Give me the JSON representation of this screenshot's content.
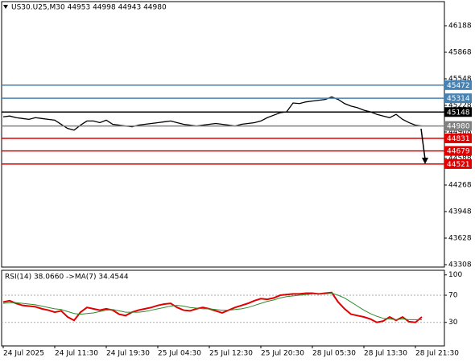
{
  "chart_data": [
    {
      "type": "line",
      "title": "US30.U25,M30  44953 44998 44943 44980",
      "color": "#000000",
      "values": [
        45090,
        45100,
        45080,
        45070,
        45060,
        45080,
        45070,
        45060,
        45050,
        45000,
        44950,
        44930,
        44990,
        45040,
        45040,
        45020,
        45050,
        45000,
        44990,
        44980,
        44970,
        44990,
        45000,
        45010,
        45020,
        45030,
        45040,
        45020,
        45000,
        44990,
        44980,
        44990,
        45000,
        45010,
        45000,
        44990,
        44980,
        45000,
        45010,
        45020,
        45040,
        45080,
        45110,
        45140,
        45150,
        45257,
        45250,
        45270,
        45280,
        45290,
        45300,
        45330,
        45300,
        45250,
        45220,
        45200,
        45170,
        45150,
        45120,
        45100,
        45080,
        45120,
        45060,
        45020,
        44990,
        44980
      ],
      "ylim": [
        43279,
        46479
      ],
      "yticks": [
        46188,
        45868,
        45548,
        45228,
        44908,
        44588,
        44268,
        43948,
        43628,
        43308
      ],
      "levels": [
        {
          "value": 45472,
          "color": "#4682b4"
        },
        {
          "value": 45314,
          "color": "#4682b4"
        },
        {
          "value": 45148,
          "color": "#000000"
        },
        {
          "value": 44980,
          "color": "#808080"
        },
        {
          "value": 44831,
          "color": "#e00000"
        },
        {
          "value": 44679,
          "color": "#e00000"
        },
        {
          "value": 44521,
          "color": "#e00000"
        }
      ]
    },
    {
      "type": "line",
      "title": "RSI(14) 38.0660  ->MA(7) 34.4544",
      "categories": [
        "24 Jul 2025",
        null,
        null,
        null,
        null,
        null,
        null,
        null,
        "24 Jul 11:30",
        null,
        null,
        null,
        null,
        null,
        null,
        null,
        "24 Jul 19:30",
        null,
        null,
        null,
        null,
        null,
        null,
        null,
        "25 Jul 04:30",
        null,
        null,
        null,
        null,
        null,
        null,
        null,
        "25 Jul 12:30",
        null,
        null,
        null,
        null,
        null,
        null,
        null,
        "25 Jul 20:30",
        null,
        null,
        null,
        null,
        null,
        null,
        null,
        "28 Jul 05:30",
        null,
        null,
        null,
        null,
        null,
        null,
        null,
        "28 Jul 13:30",
        null,
        null,
        null,
        null,
        null,
        null,
        null,
        "28 Jul 21:30",
        null
      ],
      "series": [
        {
          "color": "#e00000",
          "values": [
            60,
            62,
            58,
            55,
            54,
            53,
            50,
            48,
            45,
            47,
            38,
            33,
            45,
            52,
            50,
            48,
            50,
            48,
            42,
            40,
            45,
            48,
            50,
            52,
            55,
            57,
            58,
            52,
            48,
            47,
            50,
            52,
            50,
            47,
            44,
            48,
            52,
            55,
            58,
            62,
            65,
            64,
            66,
            70,
            71,
            72,
            72,
            73,
            73,
            72,
            73,
            74,
            60,
            50,
            42,
            40,
            38,
            35,
            30,
            32,
            38,
            33,
            38,
            31,
            30,
            38
          ]
        },
        {
          "color": "#2e8b2e",
          "values": [
            58,
            59,
            59,
            58,
            57,
            56,
            54,
            52,
            50,
            49,
            46,
            43,
            42,
            43,
            44,
            46,
            48,
            49,
            47,
            45,
            45,
            45,
            46,
            48,
            50,
            52,
            54,
            55,
            54,
            52,
            51,
            50,
            50,
            49,
            48,
            48,
            49,
            50,
            52,
            55,
            58,
            61,
            63,
            66,
            68,
            69,
            70,
            71,
            72,
            72,
            72,
            73,
            70,
            66,
            60,
            54,
            48,
            43,
            39,
            36,
            35,
            34,
            35,
            34,
            34,
            34
          ]
        }
      ],
      "ylim": [
        -4.7,
        106.8
      ],
      "yticks": [
        100,
        70,
        30
      ],
      "grid": [
        70,
        30
      ]
    }
  ]
}
